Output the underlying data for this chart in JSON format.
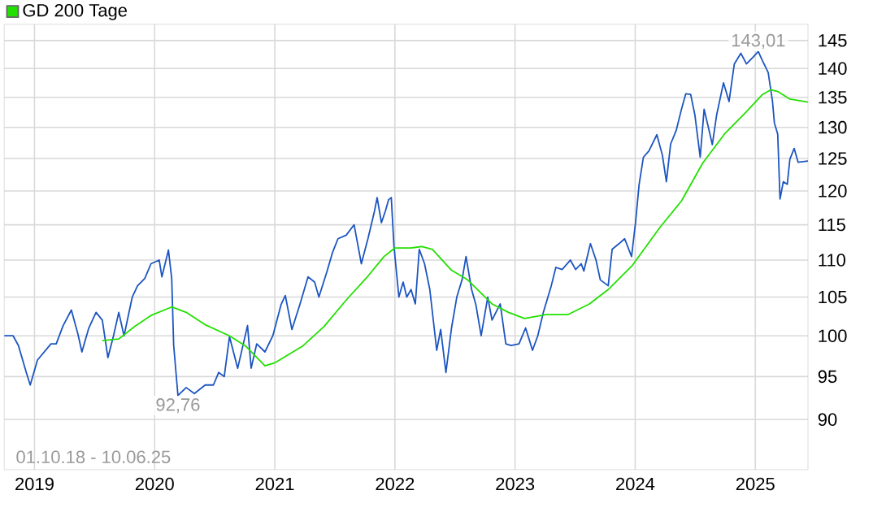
{
  "chart_data": {
    "type": "line",
    "log": "y",
    "grid": true,
    "legend": "top left",
    "xlim": [
      "2018-10-01",
      "2025-06-10"
    ],
    "xticks": [
      "2019",
      "2020",
      "2021",
      "2022",
      "2023",
      "2024",
      "2025"
    ],
    "ylim": [
      84.5,
      148
    ],
    "yticks": [
      90,
      95,
      100,
      105,
      110,
      115,
      120,
      125,
      130,
      135,
      140,
      145
    ],
    "annotations": [
      "01.10.18 - 10.06.25",
      {
        "text": "92,76",
        "x": "2020-03-12",
        "y": 92.76
      },
      {
        "text": "143,01",
        "x": "2025-01-10",
        "y": 143.01
      }
    ],
    "series": [
      {
        "color": "#1c55c0",
        "x": [
          "2018-10-01",
          "2018-10-28",
          "2018-11-13",
          "2018-12-07",
          "2018-12-19",
          "2019-01-10",
          "2019-02-20",
          "2019-03-08",
          "2019-03-29",
          "2019-04-23",
          "2019-05-13",
          "2019-05-25",
          "2019-06-15",
          "2019-07-07",
          "2019-07-26",
          "2019-08-12",
          "2019-08-29",
          "2019-09-14",
          "2019-09-30",
          "2019-10-25",
          "2019-11-10",
          "2019-12-02",
          "2019-12-21",
          "2020-01-15",
          "2020-01-23",
          "2020-02-12",
          "2020-02-22",
          "2020-02-28",
          "2020-03-12",
          "2020-04-06",
          "2020-05-01",
          "2020-06-03",
          "2020-06-28",
          "2020-07-14",
          "2020-07-31",
          "2020-08-16",
          "2020-09-10",
          "2020-10-10",
          "2020-10-21",
          "2020-11-07",
          "2020-12-02",
          "2020-12-26",
          "2021-01-20",
          "2021-02-02",
          "2021-02-22",
          "2021-03-18",
          "2021-04-12",
          "2021-05-02",
          "2021-05-15",
          "2021-06-09",
          "2021-06-25",
          "2021-07-12",
          "2021-08-06",
          "2021-08-30",
          "2021-09-21",
          "2021-10-11",
          "2021-10-31",
          "2021-11-08",
          "2021-11-21",
          "2021-12-03",
          "2021-12-13",
          "2021-12-21",
          "2021-12-29",
          "2022-01-13",
          "2022-01-26",
          "2022-02-06",
          "2022-02-19",
          "2022-03-04",
          "2022-03-16",
          "2022-04-01",
          "2022-04-17",
          "2022-05-08",
          "2022-05-20",
          "2022-06-05",
          "2022-06-22",
          "2022-07-08",
          "2022-07-24",
          "2022-08-05",
          "2022-08-22",
          "2022-09-04",
          "2022-09-20",
          "2022-10-10",
          "2022-10-23",
          "2022-11-17",
          "2022-12-04",
          "2022-12-20",
          "2023-01-13",
          "2023-02-02",
          "2023-02-23",
          "2023-03-11",
          "2023-03-28",
          "2023-04-21",
          "2023-05-05",
          "2023-05-24",
          "2023-06-18",
          "2023-07-04",
          "2023-07-21",
          "2023-07-29",
          "2023-08-18",
          "2023-09-04",
          "2023-09-17",
          "2023-10-11",
          "2023-10-23",
          "2023-11-13",
          "2023-11-30",
          "2023-12-21",
          "2024-01-02",
          "2024-01-13",
          "2024-01-26",
          "2024-02-12",
          "2024-03-07",
          "2024-03-24",
          "2024-04-05",
          "2024-04-18",
          "2024-05-05",
          "2024-05-21",
          "2024-06-03",
          "2024-06-18",
          "2024-07-01",
          "2024-07-17",
          "2024-07-29",
          "2024-08-11",
          "2024-08-23",
          "2024-09-05",
          "2024-09-26",
          "2024-10-13",
          "2024-10-29",
          "2024-11-18",
          "2024-12-05",
          "2024-12-25",
          "2025-01-10",
          "2025-01-20",
          "2025-02-09",
          "2025-02-22",
          "2025-02-28",
          "2025-03-10",
          "2025-03-17",
          "2025-03-27",
          "2025-04-08",
          "2025-04-16",
          "2025-04-29",
          "2025-05-11",
          "2025-06-10"
        ],
        "values": [
          100,
          100,
          98.8,
          95.5,
          94,
          97,
          99,
          99,
          101.3,
          103.3,
          100.2,
          98,
          101,
          103,
          102,
          97.3,
          100,
          103,
          100,
          105,
          106.5,
          107.5,
          109.5,
          110,
          107.7,
          111.4,
          107.5,
          98.8,
          92.76,
          93.7,
          93,
          94,
          94,
          95.5,
          95,
          99.9,
          96,
          101.3,
          96,
          99,
          98,
          100,
          104,
          105.2,
          100.8,
          104,
          107.7,
          107,
          105,
          108.5,
          111,
          113,
          113.5,
          115,
          109.5,
          113,
          117,
          119,
          115.3,
          117,
          118.7,
          119,
          112,
          105,
          107,
          105,
          106,
          104.1,
          111.5,
          109.5,
          106,
          98.2,
          100.8,
          95.5,
          101,
          105,
          107.3,
          110.5,
          106,
          104,
          100,
          105,
          102,
          104.1,
          99,
          98.8,
          99,
          101,
          98.2,
          100,
          103,
          106.5,
          109,
          108.7,
          110,
          108.7,
          109.5,
          108.5,
          112.3,
          110,
          107.3,
          106.5,
          111.5,
          112.3,
          113,
          110.5,
          115.3,
          121,
          125.2,
          126.2,
          128.8,
          125.5,
          121.4,
          127.3,
          129.5,
          133,
          135.6,
          135.5,
          132,
          125.2,
          133,
          130,
          127.2,
          132,
          137.5,
          134.3,
          140.8,
          142.7,
          140.8,
          142,
          143.01,
          141.7,
          139.3,
          134.4,
          130.7,
          128.9,
          118.8,
          121.4,
          121,
          124.9,
          126.6,
          124.4,
          124.6
        ]
      },
      {
        "name": "GD 200 Tage",
        "color": "#22e000",
        "x": [
          "2019-07-26",
          "2019-09-14",
          "2019-11-02",
          "2019-12-21",
          "2020-02-22",
          "2020-04-06",
          "2020-06-03",
          "2020-08-16",
          "2020-10-05",
          "2020-12-02",
          "2021-01-03",
          "2021-03-26",
          "2021-05-31",
          "2021-08-06",
          "2021-10-11",
          "2021-11-29",
          "2022-01-01",
          "2022-02-19",
          "2022-03-24",
          "2022-04-25",
          "2022-06-22",
          "2022-08-10",
          "2022-10-23",
          "2022-12-12",
          "2023-01-30",
          "2023-04-05",
          "2023-06-10",
          "2023-08-15",
          "2023-10-11",
          "2023-12-24",
          "2024-03-16",
          "2024-05-21",
          "2024-07-25",
          "2024-09-29",
          "2024-12-05",
          "2025-01-23",
          "2025-02-17",
          "2025-03-10",
          "2025-04-16",
          "2025-06-10"
        ],
        "values": [
          99.4,
          99.6,
          101.2,
          102.6,
          103.7,
          103,
          101.4,
          100,
          98.7,
          96.3,
          96.7,
          98.7,
          101.2,
          104.6,
          107.8,
          110.5,
          111.7,
          111.7,
          111.9,
          111.5,
          108.6,
          107.3,
          104.1,
          103,
          102.2,
          102.7,
          102.7,
          104.1,
          106,
          109.3,
          114.6,
          118.5,
          124.3,
          128.9,
          132.6,
          135.5,
          136.3,
          136,
          134.7,
          134.2
        ]
      }
    ]
  }
}
